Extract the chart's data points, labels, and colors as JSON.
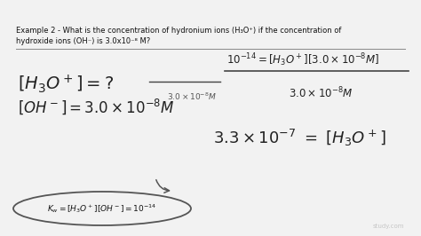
{
  "bg_color": "#f0f0f0",
  "tc": "#222222",
  "tc_light": "#555555",
  "watermark": "study.com"
}
